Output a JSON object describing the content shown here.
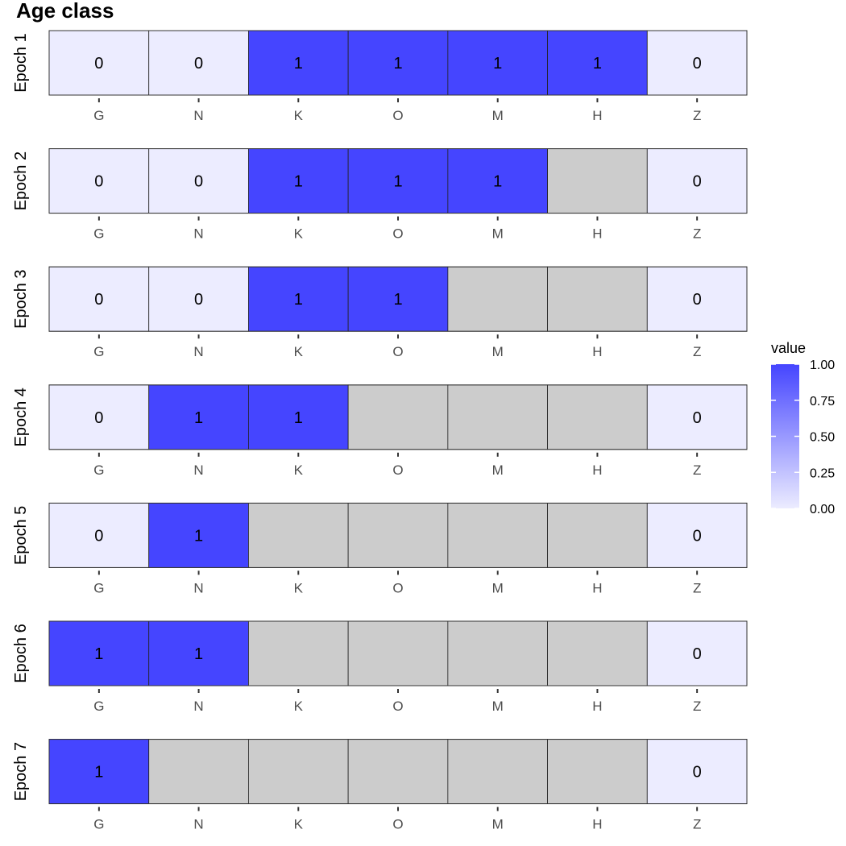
{
  "chart_data": {
    "type": "heatmap",
    "title": "Age class",
    "categories": [
      "G",
      "N",
      "K",
      "O",
      "M",
      "H",
      "Z"
    ],
    "panels": [
      {
        "label": "Epoch 1",
        "values": [
          0,
          0,
          1,
          1,
          1,
          1,
          0
        ]
      },
      {
        "label": "Epoch 2",
        "values": [
          0,
          0,
          1,
          1,
          1,
          null,
          0
        ]
      },
      {
        "label": "Epoch 3",
        "values": [
          0,
          0,
          1,
          1,
          null,
          null,
          0
        ]
      },
      {
        "label": "Epoch 4",
        "values": [
          0,
          1,
          1,
          null,
          null,
          null,
          0
        ]
      },
      {
        "label": "Epoch 5",
        "values": [
          0,
          1,
          null,
          null,
          null,
          null,
          0
        ]
      },
      {
        "label": "Epoch 6",
        "values": [
          1,
          1,
          null,
          null,
          null,
          null,
          0
        ]
      },
      {
        "label": "Epoch 7",
        "values": [
          1,
          null,
          null,
          null,
          null,
          null,
          0
        ]
      }
    ],
    "legend": {
      "title": "value",
      "ticks": [
        "1.00",
        "0.75",
        "0.50",
        "0.25",
        "0.00"
      ],
      "range": [
        0,
        1
      ],
      "placement": "right"
    },
    "colors": {
      "low": "#ececff",
      "high": "#4545ff",
      "missing": "#cccccc"
    }
  }
}
